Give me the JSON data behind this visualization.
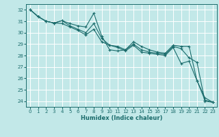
{
  "title": "",
  "xlabel": "Humidex (Indice chaleur)",
  "xlim": [
    -0.5,
    23.5
  ],
  "ylim": [
    23.5,
    32.5
  ],
  "xticks": [
    0,
    1,
    2,
    3,
    4,
    5,
    6,
    7,
    8,
    9,
    10,
    11,
    12,
    13,
    14,
    15,
    16,
    17,
    18,
    19,
    20,
    21,
    22,
    23
  ],
  "yticks": [
    24,
    25,
    26,
    27,
    28,
    29,
    30,
    31,
    32
  ],
  "bg_color": "#c2e8e8",
  "grid_color": "#ffffff",
  "line_color": "#1a6b6b",
  "line1_y": [
    32.0,
    31.4,
    31.0,
    30.85,
    31.05,
    30.8,
    30.6,
    30.5,
    31.7,
    29.7,
    28.5,
    28.4,
    28.5,
    29.2,
    28.8,
    28.5,
    28.3,
    28.2,
    28.9,
    28.8,
    28.8,
    25.8,
    24.3,
    23.9
  ],
  "line2_y": [
    32.0,
    31.4,
    31.0,
    30.85,
    31.05,
    30.6,
    30.3,
    30.0,
    30.8,
    29.5,
    28.9,
    28.8,
    28.5,
    29.0,
    28.5,
    28.3,
    28.2,
    28.1,
    28.8,
    28.6,
    27.8,
    27.4,
    24.0,
    23.9
  ],
  "line3_y": [
    32.0,
    31.4,
    31.0,
    30.85,
    30.8,
    30.5,
    30.2,
    29.8,
    30.3,
    29.2,
    28.9,
    28.7,
    28.4,
    28.9,
    28.3,
    28.2,
    28.1,
    28.0,
    28.7,
    27.3,
    27.5,
    25.8,
    24.1,
    23.9
  ]
}
